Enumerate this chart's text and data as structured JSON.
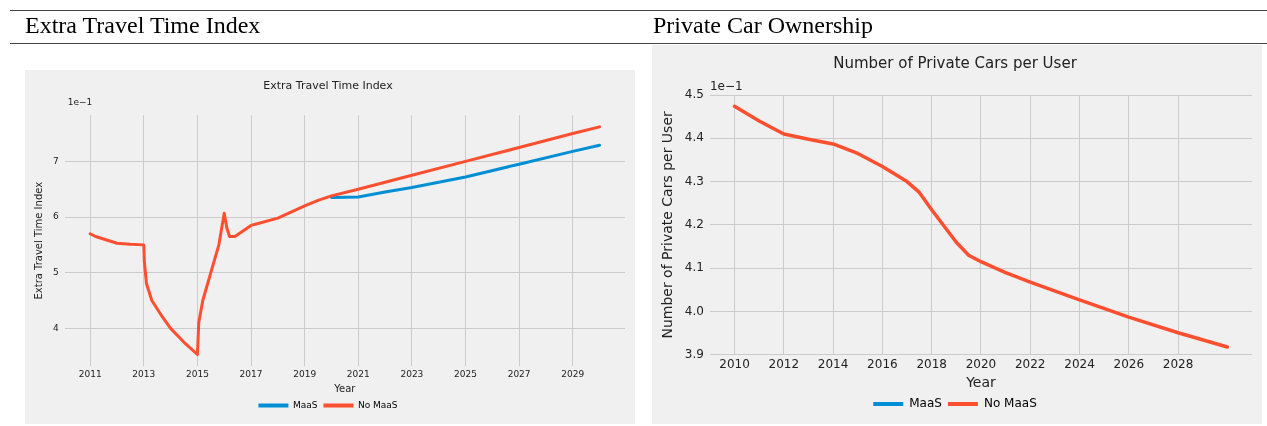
{
  "chart_data": [
    {
      "type": "line",
      "title": "Extra Travel Time Index",
      "xlabel": "Year",
      "ylabel": "Extra Travel Time Index",
      "annotations": [
        "Extra Travel Time Index",
        "1e−1"
      ],
      "xlim": [
        2010.05,
        2030.95
      ],
      "xticks": [
        2011,
        2013,
        2015,
        2017,
        2019,
        2021,
        2023,
        2025,
        2027,
        2029
      ],
      "ylim": [
        3.32,
        7.83
      ],
      "yticks": [
        4,
        5,
        6,
        7
      ],
      "grid": true,
      "legend": "bottom",
      "marker": "none",
      "line_style": "solid",
      "series": [
        {
          "name": "MaaS",
          "color": "#008fd5",
          "x": [
            2020,
            2021,
            2022,
            2023,
            2025,
            2027,
            2029,
            2030
          ],
          "values": [
            6.35,
            6.36,
            6.45,
            6.53,
            6.72,
            6.95,
            7.18,
            7.29
          ]
        },
        {
          "name": "No MaaS",
          "color": "#fc4f30",
          "x": [
            2011,
            2011.2,
            2012,
            2012.5,
            2013,
            2013.02,
            2013.1,
            2013.3,
            2013.7,
            2014,
            2014.5,
            2015,
            2015.05,
            2015.2,
            2015.5,
            2015.8,
            2016,
            2016.1,
            2016.2,
            2016.4,
            2017,
            2018,
            2019,
            2019.5,
            2020,
            2021,
            2023,
            2025,
            2027,
            2029,
            2030
          ],
          "values": [
            5.7,
            5.65,
            5.53,
            5.51,
            5.5,
            5.2,
            4.8,
            4.5,
            4.2,
            4.0,
            3.75,
            3.53,
            4.1,
            4.5,
            5.0,
            5.5,
            6.07,
            5.8,
            5.65,
            5.65,
            5.85,
            5.98,
            6.2,
            6.3,
            6.38,
            6.5,
            6.75,
            7.0,
            7.25,
            7.5,
            7.62
          ]
        }
      ]
    },
    {
      "type": "line",
      "title": "Number of Private Cars per User",
      "xlabel": "Year",
      "ylabel": "Number of Private Cars per User",
      "annotations": [
        "Private Car Ownership",
        "1e−1"
      ],
      "xlim": [
        2009,
        2031
      ],
      "xticks": [
        2010,
        2012,
        2014,
        2016,
        2018,
        2020,
        2022,
        2024,
        2026,
        2028
      ],
      "ylim": [
        3.9,
        4.5
      ],
      "yticks": [
        {
          "value": 3.9,
          "label": "3.9"
        },
        {
          "value": 4.0,
          "label": "4.0"
        },
        {
          "value": 4.1,
          "label": "4.1"
        },
        {
          "value": 4.2,
          "label": "4.2"
        },
        {
          "value": 4.3,
          "label": "4.3"
        },
        {
          "value": 4.4,
          "label": "4.4"
        },
        {
          "value": 4.5,
          "label": "4.5"
        }
      ],
      "grid": true,
      "legend": "bottom",
      "marker": "none",
      "line_style": "solid",
      "series": [
        {
          "name": "MaaS",
          "color": "#008fd5"
        },
        {
          "name": "No MaaS",
          "color": "#fc4f30",
          "x": [
            2010,
            2011,
            2012,
            2013,
            2014,
            2015,
            2016,
            2017,
            2017.5,
            2018,
            2019,
            2019.5,
            2020,
            2021,
            2022,
            2024,
            2026,
            2028,
            2030
          ],
          "values": [
            4.474,
            4.44,
            4.41,
            4.398,
            4.387,
            4.365,
            4.335,
            4.3,
            4.275,
            4.235,
            4.16,
            4.13,
            4.115,
            4.09,
            4.068,
            4.027,
            3.987,
            3.951,
            3.918
          ]
        }
      ]
    }
  ]
}
